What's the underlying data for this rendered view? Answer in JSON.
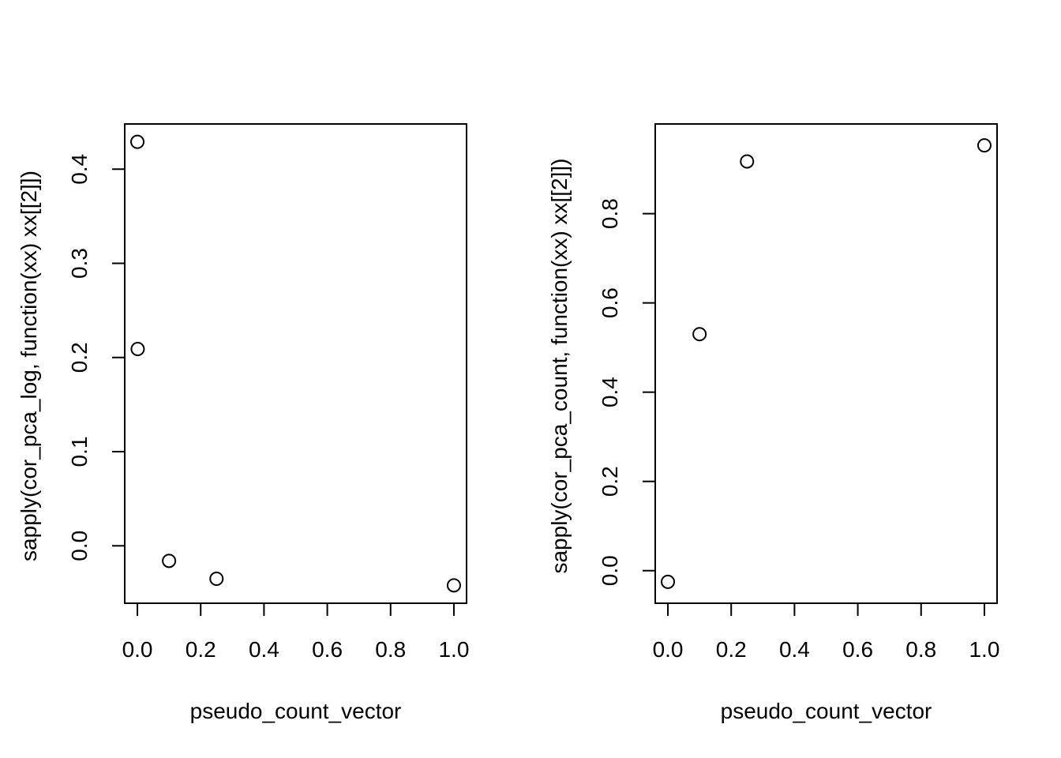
{
  "chart_data": [
    {
      "type": "scatter",
      "title": "",
      "xlabel": "pseudo_count_vector",
      "ylabel": "sapply(cor_pca_log, function(xx) xx[[2]])",
      "x": [
        0,
        0.001,
        0.1,
        0.25,
        1
      ],
      "y": [
        0.429,
        0.209,
        -0.016,
        -0.035,
        -0.042
      ],
      "xlim": [
        -0.04,
        1.04
      ],
      "ylim": [
        -0.061,
        0.448
      ],
      "xticks": [
        0,
        0.2,
        0.4,
        0.6,
        0.8,
        1
      ],
      "xtick_labels": [
        "0.0",
        "0.2",
        "0.4",
        "0.6",
        "0.8",
        "1.0"
      ],
      "yticks": [
        0,
        0.1,
        0.2,
        0.3,
        0.4
      ],
      "ytick_labels": [
        "0.0",
        "0.1",
        "0.2",
        "0.3",
        "0.4"
      ],
      "grid": false,
      "marker": "open-circle"
    },
    {
      "type": "scatter",
      "title": "",
      "xlabel": "pseudo_count_vector",
      "ylabel": "sapply(cor_pca_count, function(xx) xx[[2]])",
      "x": [
        0,
        0.1,
        0.25,
        1
      ],
      "y": [
        -0.025,
        0.53,
        0.917,
        0.953
      ],
      "xlim": [
        -0.04,
        1.04
      ],
      "ylim": [
        -0.073,
        1.001
      ],
      "xticks": [
        0,
        0.2,
        0.4,
        0.6,
        0.8,
        1
      ],
      "xtick_labels": [
        "0.0",
        "0.2",
        "0.4",
        "0.6",
        "0.8",
        "1.0"
      ],
      "yticks": [
        0,
        0.2,
        0.4,
        0.6,
        0.8
      ],
      "ytick_labels": [
        "0.0",
        "0.2",
        "0.4",
        "0.6",
        "0.8"
      ],
      "grid": false,
      "marker": "open-circle"
    }
  ]
}
